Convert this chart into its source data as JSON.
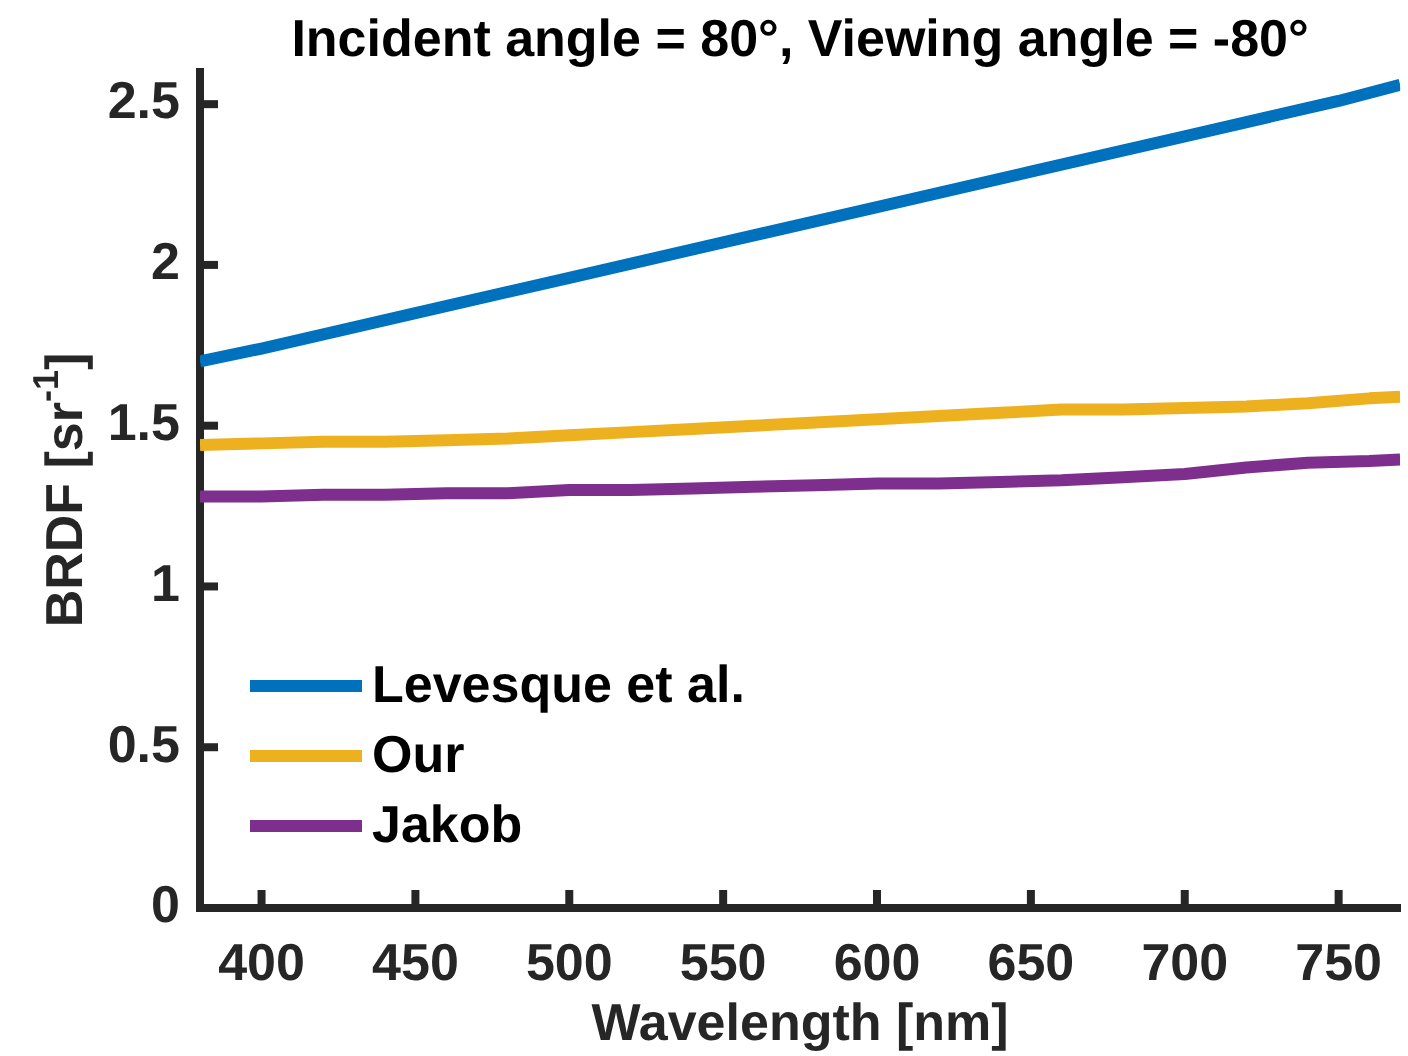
{
  "chart_data": {
    "type": "line",
    "title": "Incident angle = 80°, Viewing angle = -80°",
    "xlabel": "Wavelength [nm]",
    "ylabel": "BRDF [sr$^{-1}$]",
    "series": [
      {
        "name": "Levesque et al.",
        "color": "#0072bd",
        "x": [
          380,
          400,
          450,
          500,
          550,
          600,
          650,
          700,
          750,
          770
        ],
        "values": [
          1.7,
          1.74,
          1.85,
          1.96,
          2.07,
          2.18,
          2.29,
          2.4,
          2.51,
          2.56
        ]
      },
      {
        "name": "Our",
        "color": "#edb120",
        "x": [
          380,
          400,
          420,
          440,
          460,
          480,
          500,
          520,
          540,
          560,
          580,
          600,
          620,
          640,
          660,
          680,
          700,
          720,
          740,
          760,
          770
        ],
        "values": [
          1.44,
          1.445,
          1.45,
          1.45,
          1.455,
          1.46,
          1.47,
          1.48,
          1.49,
          1.5,
          1.51,
          1.52,
          1.53,
          1.54,
          1.55,
          1.55,
          1.555,
          1.56,
          1.57,
          1.585,
          1.59
        ]
      },
      {
        "name": "Jakob",
        "color": "#7e2f8e",
        "x": [
          380,
          400,
          420,
          440,
          460,
          480,
          500,
          520,
          540,
          560,
          580,
          600,
          620,
          640,
          660,
          680,
          700,
          720,
          740,
          760,
          770
        ],
        "values": [
          1.28,
          1.28,
          1.285,
          1.285,
          1.29,
          1.29,
          1.3,
          1.3,
          1.305,
          1.31,
          1.315,
          1.32,
          1.32,
          1.325,
          1.33,
          1.34,
          1.35,
          1.37,
          1.385,
          1.39,
          1.395
        ]
      }
    ],
    "xlim": [
      380,
      770
    ],
    "xticks": [
      400,
      450,
      500,
      550,
      600,
      650,
      700,
      750
    ],
    "ylim": [
      0,
      2.6
    ],
    "yticks": [
      0,
      0.5,
      1,
      1.5,
      2,
      2.5
    ],
    "legend": "bottom left",
    "marker": "none",
    "line_style": "solid"
  }
}
